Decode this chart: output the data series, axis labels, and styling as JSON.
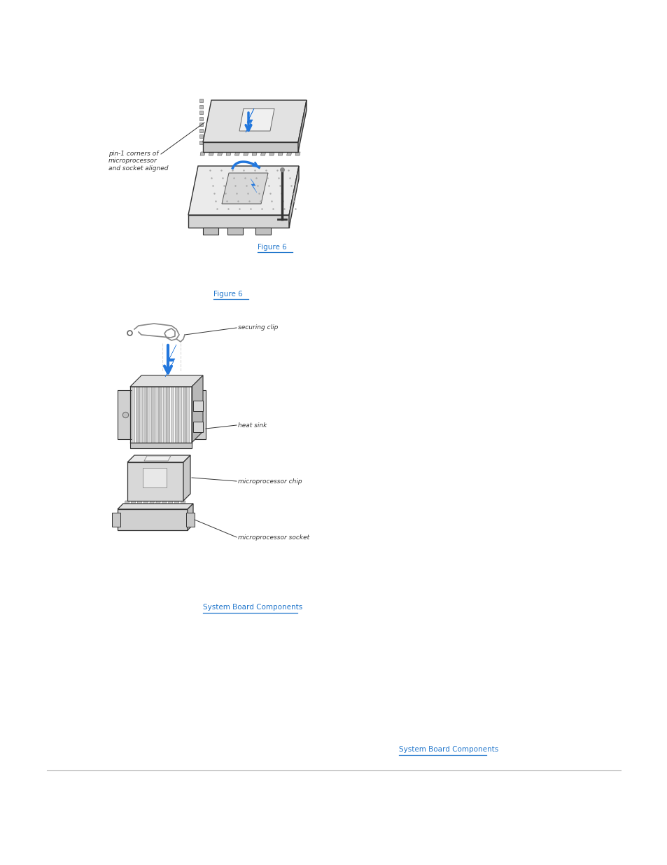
{
  "bg_color": "#ffffff",
  "fig_width": 9.54,
  "fig_height": 12.35,
  "dpi": 100,
  "fig6_text": "Figure 6",
  "fig6_color": "#2277cc",
  "fig6_underline": true,
  "label_pin1": "pin-1 corners of\nmicroprocessor\nand socket aligned",
  "label_securing_clip": "securing clip",
  "label_heat_sink": "heat sink",
  "label_micro_chip": "microprocessor chip",
  "label_micro_socket": "microprocessor socket",
  "label_color": "#333333",
  "label_fontsize": 6.5,
  "line_color": "#333333",
  "blue_arrow_color": "#2277dd",
  "hrule_color": "#aaaaaa",
  "blue_link_color": "#2277cc",
  "chip_color_top": "#e0e0e0",
  "chip_color_side": "#c0c0c0",
  "chip_color_front": "#d0d0d0",
  "socket_top_color": "#e8e8e8",
  "socket_front_color": "#d8d8d8",
  "socket_side_color": "#c8c8c8",
  "heatsink_fin_color": "#cccccc",
  "heatsink_body_color": "#d8d8d8"
}
